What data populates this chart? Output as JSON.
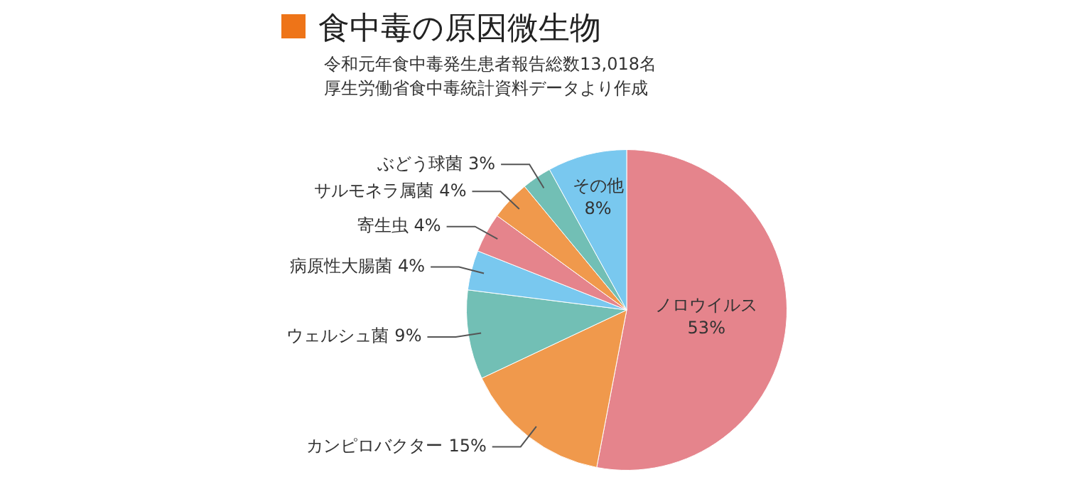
{
  "chart_data": {
    "type": "pie",
    "title": "食中毒の原因微生物",
    "subtitle": "令和元年食中毒発生患者報告総数13,018名",
    "annotations": [
      "厚生労働省食中毒統計資料データより作成"
    ],
    "categories": [
      "ノロウイルス",
      "カンピロバクター",
      "ウェルシュ菌",
      "病原性大腸菌",
      "寄生虫",
      "サルモネラ属菌",
      "ぶどう球菌",
      "その他"
    ],
    "values": [
      53,
      15,
      9,
      4,
      4,
      4,
      3,
      8
    ],
    "colors": [
      "#e5848c",
      "#f0994c",
      "#72bfb5",
      "#79c8ef",
      "#e5848c",
      "#f0994c",
      "#72bfb5",
      "#79c8ef"
    ],
    "value_labels": [
      "53%",
      "15%",
      "9%",
      "4%",
      "4%",
      "4%",
      "3%",
      "8%"
    ],
    "legend": false
  }
}
